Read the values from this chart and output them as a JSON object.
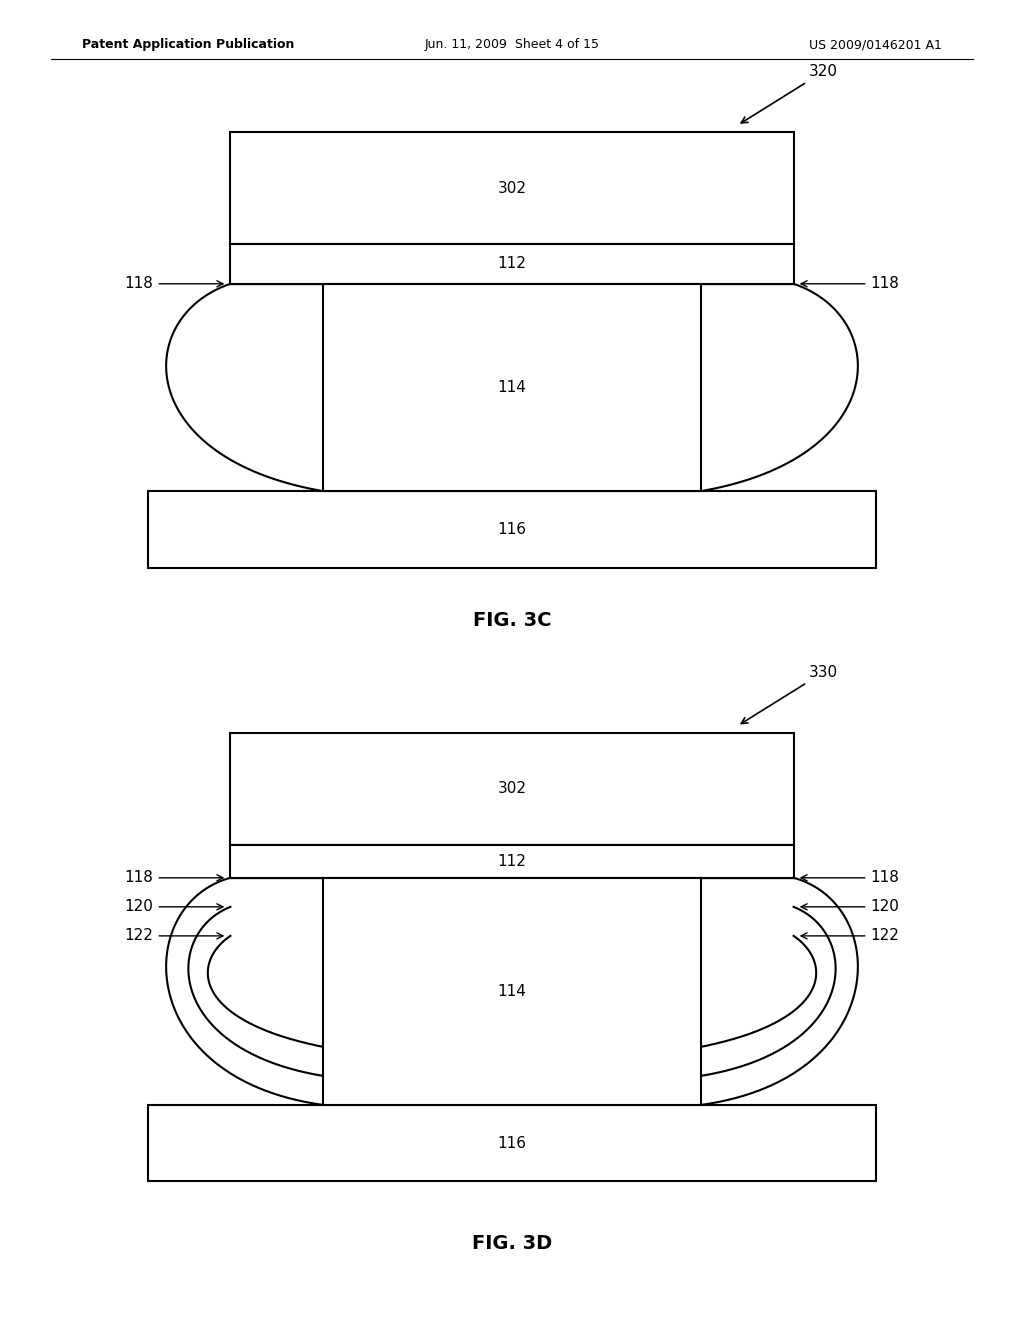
{
  "bg_color": "#ffffff",
  "header_left": "Patent Application Publication",
  "header_mid": "Jun. 11, 2009  Sheet 4 of 15",
  "header_right": "US 2009/0146201 A1",
  "fig3c_label": "FIG. 3C",
  "fig3d_label": "FIG. 3D",
  "label_320": "320",
  "label_330": "330"
}
